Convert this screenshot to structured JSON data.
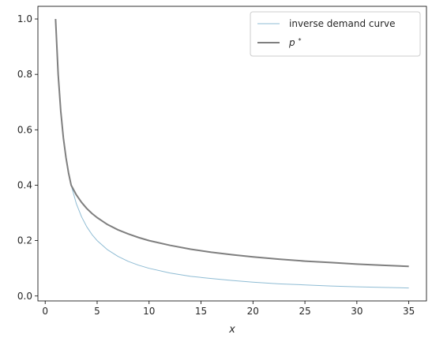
{
  "chart_data": {
    "type": "line",
    "title": "",
    "xlabel": "x",
    "ylabel": "",
    "xlim": [
      -0.7,
      36.7
    ],
    "ylim": [
      -0.0178,
      1.0457
    ],
    "x_ticks": [
      0,
      5,
      10,
      15,
      20,
      25,
      30,
      35
    ],
    "y_ticks": [
      0.0,
      0.2,
      0.4,
      0.6,
      0.8,
      1.0
    ],
    "x_tick_labels": [
      "0",
      "5",
      "10",
      "15",
      "20",
      "25",
      "30",
      "35"
    ],
    "y_tick_labels": [
      "0.0",
      "0.2",
      "0.4",
      "0.6",
      "0.8",
      "1.0"
    ],
    "grid": false,
    "legend_placement": "top-right",
    "series": [
      {
        "name": "inverse demand curve",
        "color": "#8fbcd4",
        "x": [
          1,
          1.25,
          1.5,
          1.75,
          2,
          2.25,
          2.5,
          3,
          3.5,
          4,
          4.5,
          5,
          6,
          7,
          8,
          9,
          10,
          12,
          14,
          16,
          18,
          20,
          22.5,
          25,
          27.5,
          30,
          32.5,
          35
        ],
        "y": [
          1.0,
          0.8,
          0.667,
          0.571,
          0.5,
          0.444,
          0.4,
          0.333,
          0.286,
          0.25,
          0.222,
          0.2,
          0.167,
          0.143,
          0.125,
          0.111,
          0.1,
          0.083,
          0.071,
          0.063,
          0.056,
          0.05,
          0.044,
          0.04,
          0.036,
          0.033,
          0.031,
          0.029
        ]
      },
      {
        "name": "p*",
        "color": "#7f7f7f",
        "x": [
          1,
          1.25,
          1.5,
          1.75,
          2,
          2.25,
          2.5,
          3,
          3.5,
          4,
          4.5,
          5,
          6,
          7,
          8,
          9,
          10,
          12,
          14,
          16,
          18,
          20,
          22.5,
          25,
          27.5,
          30,
          32.5,
          35
        ],
        "y": [
          1.0,
          0.8,
          0.667,
          0.571,
          0.5,
          0.444,
          0.4,
          0.365,
          0.338,
          0.316,
          0.298,
          0.283,
          0.258,
          0.239,
          0.224,
          0.211,
          0.2,
          0.183,
          0.169,
          0.158,
          0.149,
          0.141,
          0.133,
          0.126,
          0.121,
          0.115,
          0.111,
          0.107
        ]
      }
    ]
  },
  "legend": {
    "entries": [
      {
        "label": "inverse demand curve",
        "color": "#8fbcd4"
      },
      {
        "label_base": "p",
        "label_sup": "*",
        "color": "#7f7f7f"
      }
    ]
  }
}
